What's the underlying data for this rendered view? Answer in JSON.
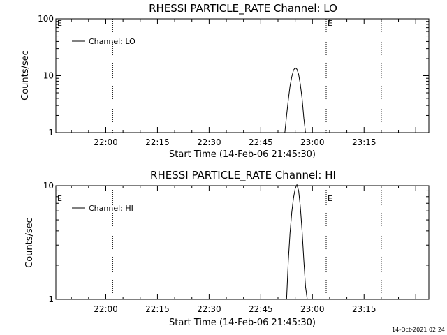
{
  "chart_data": [
    {
      "type": "line",
      "title": "RHESSI PARTICLE_RATE Channel: LO",
      "xlabel": "Start Time (14-Feb-06 21:45:30)",
      "ylabel": "Counts/sec",
      "yscale": "log",
      "ylim": [
        1,
        100
      ],
      "ytick_labels": [
        "1",
        "10",
        "100"
      ],
      "xtick_labels": [
        "22:00",
        "22:15",
        "22:30",
        "22:45",
        "23:00",
        "23:15"
      ],
      "legend": {
        "entries": [
          "Channel: LO"
        ],
        "position": "top-left"
      },
      "markers": [
        {
          "label": "",
          "time": "22:02:00"
        },
        {
          "label": "E",
          "time": "23:04:00"
        },
        {
          "label": "",
          "time": "23:20:00"
        }
      ],
      "corner_label": "E",
      "series": [
        {
          "name": "Channel: LO",
          "times": [
            "22:52:00",
            "22:52:30",
            "22:53:00",
            "22:53:30",
            "22:54:00",
            "22:54:30",
            "22:55:00",
            "22:55:30",
            "22:56:00",
            "22:56:30",
            "22:57:00",
            "22:57:30",
            "22:58:00"
          ],
          "values": [
            1,
            2.0,
            3.8,
            6.5,
            9.5,
            12.5,
            13.8,
            13.0,
            10.5,
            7.0,
            4.0,
            1.8,
            1
          ]
        }
      ]
    },
    {
      "type": "line",
      "title": "RHESSI PARTICLE_RATE Channel: HI",
      "xlabel": "Start Time (14-Feb-06 21:45:30)",
      "ylabel": "Counts/sec",
      "yscale": "log",
      "ylim": [
        1,
        10
      ],
      "ytick_labels": [
        "1",
        "10"
      ],
      "xtick_labels": [
        "22:00",
        "22:15",
        "22:30",
        "22:45",
        "23:00",
        "23:15"
      ],
      "legend": {
        "entries": [
          "Channel: HI"
        ],
        "position": "top-left"
      },
      "markers": [
        {
          "label": "",
          "time": "22:02:00"
        },
        {
          "label": "E",
          "time": "23:04:00"
        },
        {
          "label": "",
          "time": "23:20:00"
        }
      ],
      "corner_label": "E",
      "series": [
        {
          "name": "Channel: HI",
          "times": [
            "22:52:30",
            "22:53:00",
            "22:53:30",
            "22:54:00",
            "22:54:30",
            "22:55:00",
            "22:55:30",
            "22:56:00",
            "22:56:30",
            "22:57:00",
            "22:57:30",
            "22:58:00",
            "22:58:30"
          ],
          "values": [
            1,
            2.2,
            3.8,
            5.8,
            7.8,
            9.4,
            10.2,
            9.0,
            6.5,
            4.0,
            2.2,
            1.3,
            1
          ]
        }
      ]
    }
  ],
  "timestamp": "14-Oct-2021 02:24"
}
